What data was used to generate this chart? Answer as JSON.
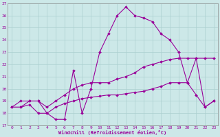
{
  "xlabel": "Windchill (Refroidissement éolien,°C)",
  "ylabel": "",
  "background_color": "#cce8e8",
  "grid_color": "#aacfcf",
  "line_color": "#990099",
  "xlim": [
    -0.5,
    23.5
  ],
  "ylim": [
    17,
    27
  ],
  "xticks": [
    0,
    1,
    2,
    3,
    4,
    5,
    6,
    7,
    8,
    9,
    10,
    11,
    12,
    13,
    14,
    15,
    16,
    17,
    18,
    19,
    20,
    21,
    22,
    23
  ],
  "yticks": [
    17,
    18,
    19,
    20,
    21,
    22,
    23,
    24,
    25,
    26,
    27
  ],
  "line1_x": [
    0,
    1,
    2,
    3,
    4,
    5,
    6,
    7,
    8,
    9,
    10,
    11,
    12,
    13,
    14,
    15,
    16,
    17,
    18,
    19,
    20,
    21,
    22,
    23
  ],
  "line1_y": [
    18.5,
    18.5,
    19.0,
    19.0,
    18.0,
    17.5,
    17.5,
    21.5,
    18.0,
    20.0,
    23.0,
    24.5,
    26.0,
    26.7,
    26.0,
    25.8,
    25.5,
    24.5,
    24.0,
    23.0,
    20.5,
    22.5,
    18.5,
    19.0
  ],
  "line2_x": [
    0,
    1,
    2,
    3,
    4,
    5,
    6,
    7,
    8,
    9,
    10,
    11,
    12,
    13,
    14,
    15,
    16,
    17,
    18,
    19,
    20,
    21,
    22,
    23
  ],
  "line2_y": [
    18.5,
    19.0,
    19.0,
    19.0,
    18.5,
    19.0,
    19.5,
    20.0,
    20.3,
    20.5,
    20.5,
    20.5,
    20.8,
    21.0,
    21.3,
    21.8,
    22.0,
    22.2,
    22.4,
    22.5,
    22.5,
    22.5,
    22.5,
    22.5
  ],
  "line3_x": [
    0,
    1,
    2,
    3,
    4,
    5,
    6,
    7,
    8,
    9,
    10,
    11,
    12,
    13,
    14,
    15,
    16,
    17,
    18,
    19,
    20,
    21,
    22,
    23
  ],
  "line3_y": [
    18.5,
    18.5,
    18.7,
    18.0,
    18.0,
    18.5,
    18.8,
    19.0,
    19.2,
    19.3,
    19.4,
    19.5,
    19.5,
    19.6,
    19.7,
    19.8,
    20.0,
    20.2,
    20.5,
    20.5,
    20.5,
    19.5,
    18.5,
    19.0
  ],
  "figsize": [
    3.2,
    2.0
  ],
  "dpi": 100
}
